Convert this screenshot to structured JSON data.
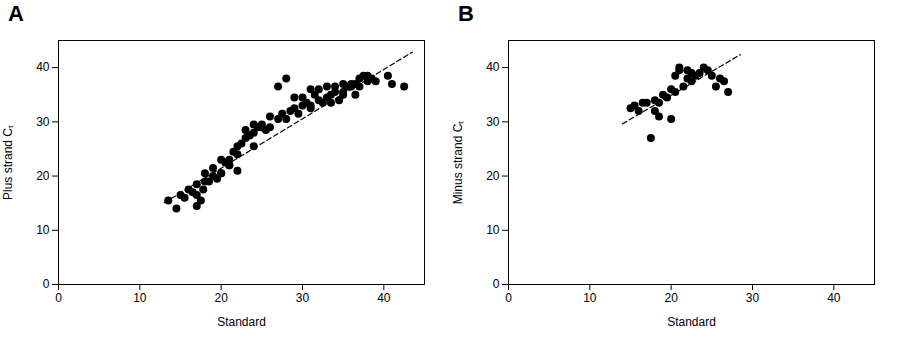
{
  "chart_data": [
    {
      "type": "scatter",
      "title": "A",
      "x_label": "Standard",
      "y_label": "Plus strand Cₜ",
      "xlim": [
        0,
        45
      ],
      "ylim": [
        0,
        45
      ],
      "xticks": [
        0,
        10,
        20,
        30,
        40
      ],
      "yticks": [
        0,
        10,
        20,
        30,
        40
      ],
      "series": [
        {
          "type": "scatter",
          "marker": "o",
          "color": "#000000",
          "x": [
            13.5,
            14.5,
            15.0,
            15.5,
            16.0,
            16.5,
            17.0,
            17.0,
            17.5,
            17.8,
            18.0,
            18.5,
            19.0,
            19.5,
            20.0,
            20.0,
            20.5,
            21.0,
            21.0,
            21.5,
            22.0,
            22.5,
            23.0,
            23.5,
            24.0,
            24.5,
            25.0,
            25.5,
            26.0,
            27.0,
            27.5,
            28.0,
            28.5,
            29.0,
            29.5,
            30.0,
            30.5,
            31.0,
            31.5,
            32.0,
            32.5,
            33.0,
            33.5,
            34.0,
            34.5,
            35.0,
            35.0,
            35.5,
            36.0,
            36.5,
            37.0,
            37.0,
            37.5,
            38.0,
            38.5,
            39.0,
            40.5,
            41.0,
            42.5,
            20.0,
            21.0,
            22.0,
            23.0,
            24.0,
            25.0,
            26.0,
            27.0,
            28.0,
            18.0,
            19.0,
            30.0,
            31.0,
            32.0,
            33.0,
            34.0,
            35.0,
            36.0,
            17.0,
            22.0,
            24.0,
            29.0,
            31.0,
            33.5,
            36.5,
            38.0
          ],
          "values": [
            15.5,
            14.0,
            16.5,
            16.0,
            17.5,
            17.0,
            16.5,
            18.5,
            15.5,
            17.5,
            20.5,
            19.0,
            21.5,
            19.5,
            23.0,
            20.5,
            22.5,
            23.0,
            22.0,
            24.5,
            24.0,
            26.0,
            27.0,
            27.5,
            28.0,
            29.0,
            29.5,
            28.5,
            31.0,
            30.5,
            31.5,
            30.5,
            32.0,
            32.5,
            31.5,
            33.0,
            33.5,
            32.5,
            35.0,
            34.0,
            33.5,
            34.5,
            35.0,
            35.5,
            34.0,
            35.5,
            37.0,
            36.5,
            36.5,
            37.0,
            38.0,
            36.5,
            38.5,
            37.5,
            38.0,
            37.5,
            38.5,
            37.0,
            36.5,
            20.5,
            22.0,
            25.5,
            28.5,
            29.5,
            29.0,
            29.0,
            36.5,
            38.0,
            19.0,
            20.0,
            34.5,
            36.0,
            36.0,
            36.5,
            36.5,
            35.0,
            37.0,
            14.5,
            21.0,
            25.5,
            34.5,
            33.0,
            33.5,
            35.0,
            38.5
          ]
        },
        {
          "type": "line",
          "line_style": "dashed",
          "color": "#000000",
          "x": [
            13.0,
            43.5
          ],
          "values": [
            15.09,
            42.845
          ]
        }
      ]
    },
    {
      "type": "scatter",
      "title": "B",
      "x_label": "Standard",
      "y_label": "Minus strand Cₜ",
      "xlim": [
        0,
        45
      ],
      "ylim": [
        0,
        45
      ],
      "xticks": [
        0,
        10,
        20,
        30,
        40
      ],
      "yticks": [
        0,
        10,
        20,
        30,
        40
      ],
      "series": [
        {
          "type": "scatter",
          "marker": "o",
          "color": "#000000",
          "x": [
            15.0,
            15.5,
            16.0,
            16.5,
            17.0,
            17.5,
            18.0,
            18.0,
            18.5,
            18.5,
            19.0,
            19.5,
            20.0,
            20.0,
            20.5,
            20.5,
            21.0,
            21.0,
            21.5,
            22.0,
            22.0,
            22.5,
            22.5,
            23.0,
            23.5,
            24.0,
            24.5,
            25.0,
            25.5,
            26.0,
            26.5,
            27.0
          ],
          "values": [
            32.5,
            33.0,
            32.0,
            33.5,
            33.5,
            27.0,
            32.0,
            34.0,
            33.5,
            31.0,
            35.0,
            34.5,
            30.5,
            36.0,
            35.5,
            38.5,
            39.5,
            40.0,
            36.5,
            39.5,
            38.0,
            37.5,
            39.0,
            38.5,
            39.0,
            40.0,
            39.5,
            38.5,
            36.5,
            38.0,
            37.5,
            35.5
          ]
        },
        {
          "type": "line",
          "line_style": "dashed",
          "color": "#000000",
          "x": [
            14.0,
            28.5
          ],
          "values": [
            29.62,
            42.38
          ]
        }
      ]
    }
  ]
}
